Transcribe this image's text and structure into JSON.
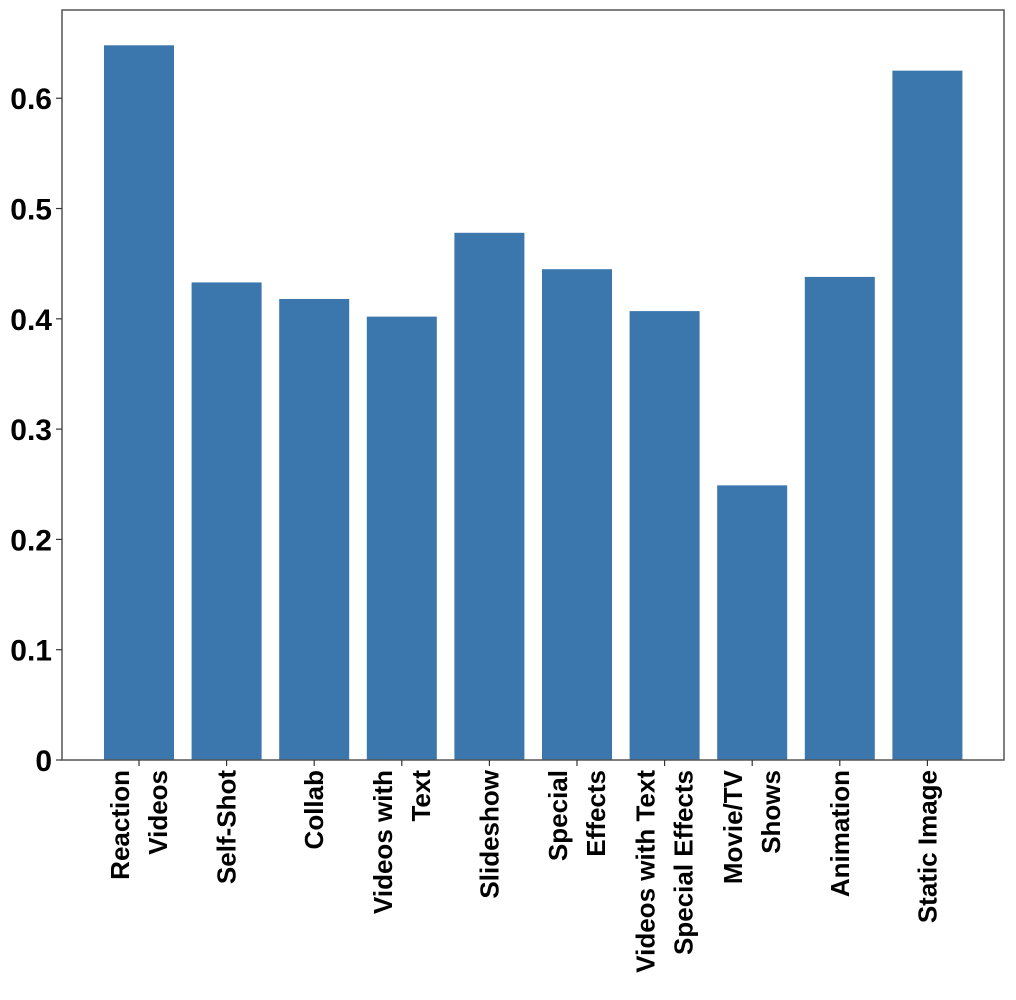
{
  "chart_data": {
    "type": "bar",
    "title": "",
    "xlabel": "",
    "ylabel": "",
    "categories": [
      [
        "Reaction",
        "Videos"
      ],
      [
        "Self-Shot"
      ],
      [
        "Collab"
      ],
      [
        "Videos with",
        "Text"
      ],
      [
        "Slideshow"
      ],
      [
        "Special",
        "Effects"
      ],
      [
        "Videos with Text",
        "Special Effects"
      ],
      [
        "Movie/TV",
        "Shows"
      ],
      [
        "Animation"
      ],
      [
        "Static Image"
      ]
    ],
    "values": [
      0.648,
      0.433,
      0.418,
      0.402,
      0.478,
      0.445,
      0.407,
      0.249,
      0.438,
      0.625
    ],
    "ylim": [
      0,
      0.68
    ],
    "yticks": [
      0,
      0.1,
      0.2,
      0.3,
      0.4,
      0.5,
      0.6
    ],
    "ytick_labels": [
      "0",
      "0.1",
      "0.2",
      "0.3",
      "0.4",
      "0.5",
      "0.6"
    ],
    "bar_color": "#3b76ad",
    "grid": false,
    "legend": "none"
  }
}
